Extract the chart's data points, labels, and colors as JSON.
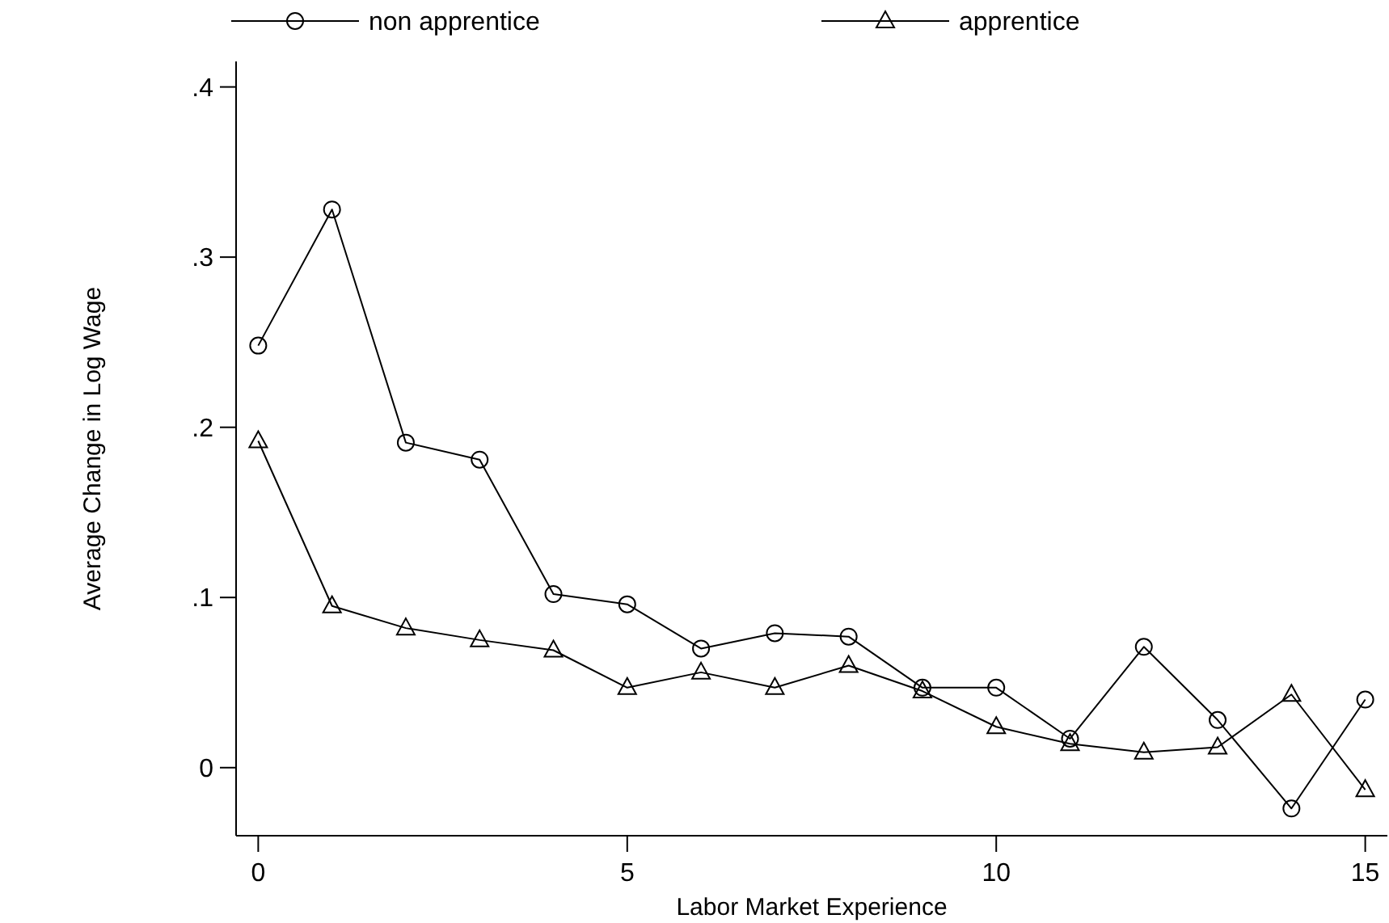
{
  "chart_data": {
    "type": "line",
    "xlabel": "Labor Market Experience",
    "ylabel": "Average Change in Log Wage",
    "x": [
      0,
      1,
      2,
      3,
      4,
      5,
      6,
      7,
      8,
      9,
      10,
      11,
      12,
      13,
      14,
      15
    ],
    "xlim": [
      -0.3,
      15.3
    ],
    "xticks": [
      0,
      5,
      10,
      15
    ],
    "ylim": [
      -0.04,
      0.415
    ],
    "yticks": [
      {
        "value": 0,
        "label": "0"
      },
      {
        "value": 0.1,
        "label": ".1"
      },
      {
        "value": 0.2,
        "label": ".2"
      },
      {
        "value": 0.3,
        "label": ".3"
      },
      {
        "value": 0.4,
        "label": ".4"
      }
    ],
    "grid": false,
    "legend": "top",
    "line_style": "solid",
    "series": [
      {
        "name": "non apprentice",
        "color": "#000000",
        "marker": "circle",
        "values": [
          0.248,
          0.328,
          0.191,
          0.181,
          0.102,
          0.096,
          0.07,
          0.079,
          0.077,
          0.047,
          0.047,
          0.017,
          0.071,
          0.028,
          -0.024,
          0.04
        ]
      },
      {
        "name": "apprentice",
        "color": "#000000",
        "marker": "triangle",
        "values": [
          0.192,
          0.095,
          0.082,
          0.075,
          0.069,
          0.047,
          0.056,
          0.047,
          0.06,
          0.045,
          0.024,
          0.014,
          0.009,
          0.012,
          0.043,
          -0.013
        ]
      }
    ]
  }
}
